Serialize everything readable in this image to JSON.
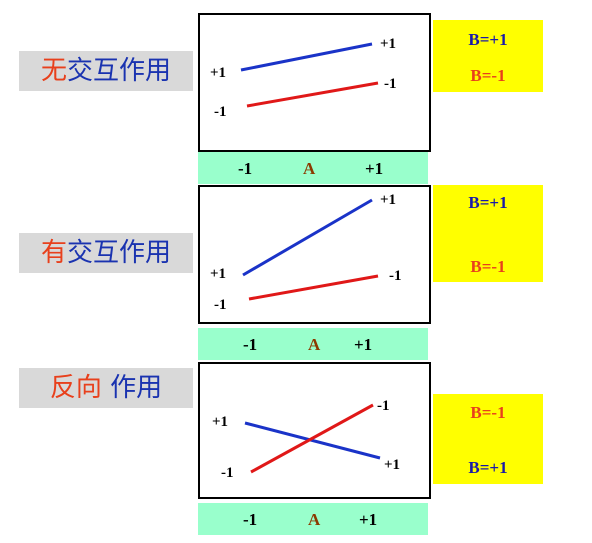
{
  "sections": [
    {
      "label_first": "无",
      "label_rest": "交互作用",
      "axis": {
        "left": "-1",
        "mid": "A",
        "right": "+1"
      },
      "legend": [
        {
          "text": "B=+1",
          "color": "#1a1aa8"
        },
        {
          "text": "B=-1",
          "color": "#e8401c"
        }
      ],
      "lines": [
        {
          "color": "#1a33c8",
          "left_label": "+1",
          "right_label": "+1"
        },
        {
          "color": "#e01818",
          "left_label": "-1",
          "right_label": "-1"
        }
      ]
    },
    {
      "label_first": "有",
      "label_rest": "交互作用",
      "axis": {
        "left": "-1",
        "mid": "A",
        "right": "+1"
      },
      "legend": [
        {
          "text": "B=+1",
          "color": "#1a1aa8"
        },
        {
          "text": "B=-1",
          "color": "#e8401c"
        }
      ],
      "lines": [
        {
          "color": "#1a33c8",
          "left_label": "+1",
          "right_label": "+1"
        },
        {
          "color": "#e01818",
          "left_label": "-1",
          "right_label": "-1"
        }
      ]
    },
    {
      "label_first": "反向",
      "label_rest": " 作用",
      "axis": {
        "left": "-1",
        "mid": "A",
        "right": "+1"
      },
      "legend": [
        {
          "text": "B=-1",
          "color": "#e8401c"
        },
        {
          "text": "B=+1",
          "color": "#1a1aa8"
        }
      ],
      "lines": [
        {
          "color": "#1a33c8",
          "left_label": "+1",
          "right_label": "+1"
        },
        {
          "color": "#e01818",
          "left_label": "-1",
          "right_label": "-1"
        }
      ]
    }
  ]
}
